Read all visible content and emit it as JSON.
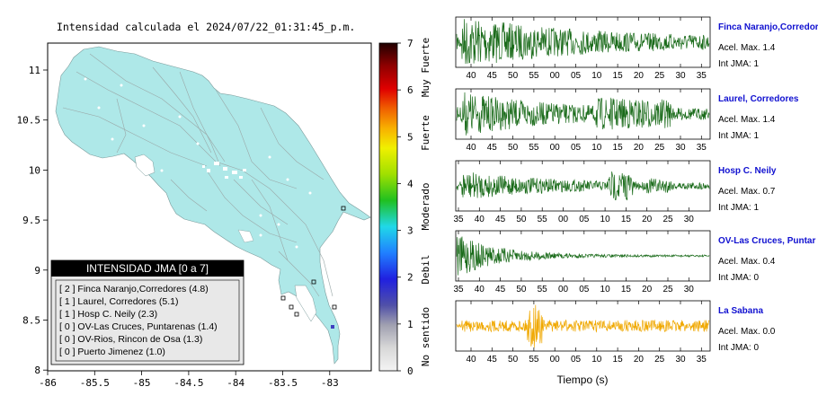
{
  "title": "Intensidad calculada el 2024/07/22_01:31:45_p.m.",
  "map": {
    "x_ticks": [
      "-86",
      "-85.5",
      "-85",
      "-84.5",
      "-84",
      "-83.5",
      "-83"
    ],
    "y_ticks": [
      "11",
      "10.5",
      "10",
      "9.5",
      "9",
      "8.5",
      "8"
    ],
    "land_color": "#aee8e8",
    "legend": {
      "header": "INTENSIDAD JMA [0 a 7]",
      "items": [
        "[ 2 ]  Finca Naranjo,Corredores (4.8)",
        "[ 1 ]  Laurel, Corredores (5.1)",
        "[ 1 ]  Hosp C. Neily (2.3)",
        "[ 0 ]  OV-Las Cruces, Puntarenas (1.4)",
        "[ 0 ]  OV-Rios, Rincon de Osa (1.3)",
        "[ 0 ]  Puerto Jimenez (1.0)"
      ]
    }
  },
  "colorbar": {
    "ticks": [
      "0",
      "1",
      "2",
      "3",
      "4",
      "5",
      "6",
      "7"
    ],
    "labels": [
      "No sentido",
      "Debil",
      "Moderado",
      "Fuerte",
      "Muy Fuerte"
    ]
  },
  "waveforms": [
    {
      "name": "Finca Naranjo,Corredor",
      "acel": "Acel. Max. 1.4",
      "jma": "Int JMA: 1",
      "ticks": [
        "40",
        "45",
        "50",
        "55",
        "00",
        "05",
        "10",
        "15",
        "20",
        "25",
        "30",
        "35"
      ],
      "color": "#1a6b1a"
    },
    {
      "name": "Laurel, Corredores",
      "acel": "Acel. Max. 1.4",
      "jma": "Int JMA: 1",
      "ticks": [
        "40",
        "45",
        "50",
        "55",
        "00",
        "05",
        "10",
        "15",
        "20",
        "25",
        "30",
        "35"
      ],
      "color": "#1a6b1a"
    },
    {
      "name": "Hosp C. Neily",
      "acel": "Acel. Max. 0.7",
      "jma": "Int JMA: 1",
      "ticks": [
        "35",
        "40",
        "45",
        "50",
        "55",
        "00",
        "05",
        "10",
        "15",
        "20",
        "25",
        "30"
      ],
      "color": "#1a6b1a"
    },
    {
      "name": "OV-Las Cruces, Puntar",
      "acel": "Acel. Max. 0.4",
      "jma": "Int JMA: 0",
      "ticks": [
        "35",
        "40",
        "45",
        "50",
        "55",
        "00",
        "05",
        "10",
        "15",
        "20",
        "25",
        "30"
      ],
      "color": "#1a6b1a"
    },
    {
      "name": "La Sabana",
      "acel": "Acel. Max. 0.0",
      "jma": "Int JMA: 0",
      "ticks": [
        "40",
        "45",
        "50",
        "55",
        "00",
        "05",
        "10",
        "15",
        "20",
        "25",
        "30",
        "35"
      ],
      "color": "#f0a800"
    }
  ],
  "xlabel": "Tiempo (s)"
}
